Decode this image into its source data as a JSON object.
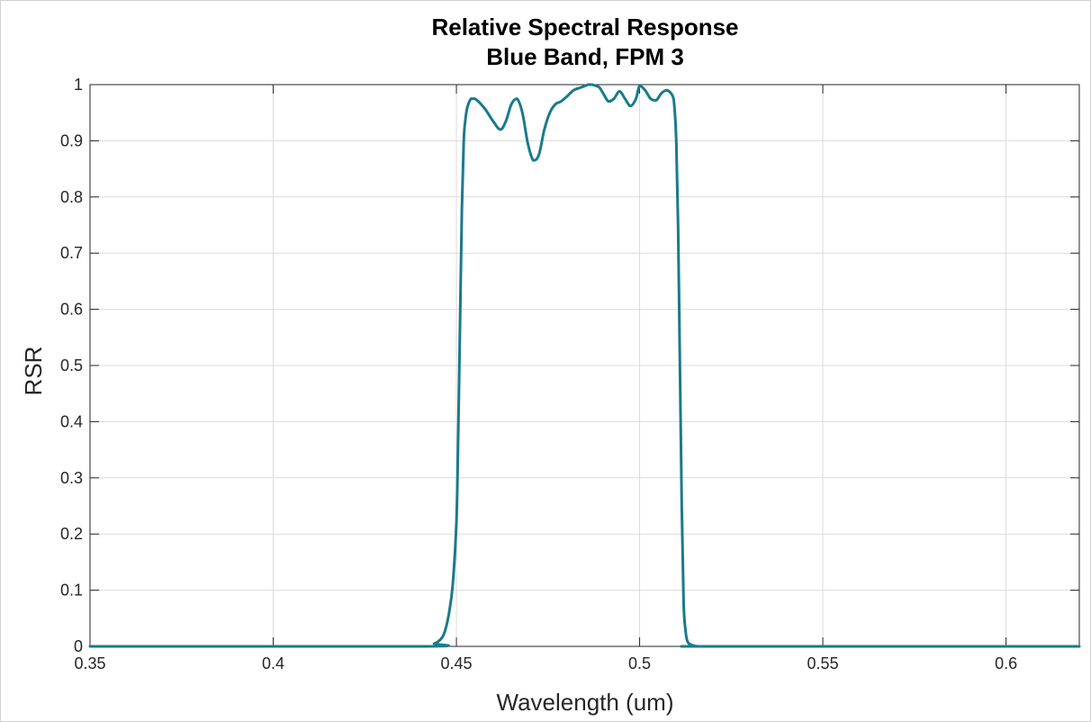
{
  "chart_data": {
    "type": "line",
    "title": "Relative Spectral Response",
    "subtitle": "Blue Band, FPM 3",
    "xlabel": "Wavelength (um)",
    "ylabel": "RSR",
    "xlim": [
      0.35,
      0.62
    ],
    "ylim": [
      0,
      1
    ],
    "xticks": [
      0.35,
      0.4,
      0.45,
      0.5,
      0.55,
      0.6
    ],
    "xtick_labels": [
      "0.35",
      "0.4",
      "0.45",
      "0.5",
      "0.55",
      "0.6"
    ],
    "yticks": [
      0,
      0.1,
      0.2,
      0.3,
      0.4,
      0.5,
      0.6,
      0.7,
      0.8,
      0.9,
      1
    ],
    "ytick_labels": [
      "0",
      "0.1",
      "0.2",
      "0.3",
      "0.4",
      "0.5",
      "0.6",
      "0.7",
      "0.8",
      "0.9",
      "1"
    ],
    "grid": true,
    "series": [
      {
        "color": "#1a7a8c",
        "x": [
          0.35,
          0.44,
          0.444,
          0.446,
          0.447,
          0.448,
          0.449,
          0.45,
          0.4505,
          0.451,
          0.4515,
          0.452,
          0.4525,
          0.453,
          0.454,
          0.455,
          0.456,
          0.458,
          0.46,
          0.462,
          0.4635,
          0.465,
          0.4665,
          0.468,
          0.4695,
          0.471,
          0.4725,
          0.474,
          0.4755,
          0.477,
          0.4785,
          0.48,
          0.482,
          0.484,
          0.486,
          0.487,
          0.488,
          0.489,
          0.49,
          0.4915,
          0.493,
          0.4945,
          0.496,
          0.4975,
          0.499,
          0.5,
          0.5015,
          0.503,
          0.5045,
          0.506,
          0.5075,
          0.509,
          0.5095,
          0.51,
          0.5105,
          0.511,
          0.5115,
          0.512,
          0.5125,
          0.513,
          0.514,
          0.516,
          0.52,
          0.62
        ],
        "y": [
          0,
          0,
          0.005,
          0.015,
          0.03,
          0.06,
          0.11,
          0.22,
          0.38,
          0.58,
          0.78,
          0.9,
          0.94,
          0.96,
          0.975,
          0.975,
          0.97,
          0.955,
          0.935,
          0.92,
          0.935,
          0.965,
          0.975,
          0.95,
          0.895,
          0.865,
          0.875,
          0.92,
          0.95,
          0.965,
          0.97,
          0.978,
          0.99,
          0.995,
          1.0,
          1.0,
          0.998,
          0.995,
          0.985,
          0.97,
          0.975,
          0.988,
          0.975,
          0.962,
          0.975,
          0.998,
          0.99,
          0.975,
          0.972,
          0.985,
          0.99,
          0.98,
          0.96,
          0.9,
          0.75,
          0.5,
          0.25,
          0.08,
          0.03,
          0.01,
          0.003,
          0,
          0,
          0
        ]
      }
    ]
  }
}
